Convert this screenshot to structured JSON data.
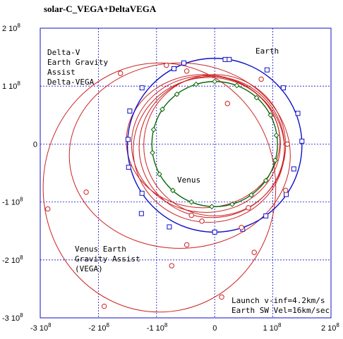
{
  "chart_data": {
    "type": "line",
    "title": "solar-C_VEGA+DeltaVEGA",
    "xlabel": "",
    "ylabel": "",
    "xlim": [
      -300000000,
      200000000
    ],
    "ylim": [
      -300000000,
      200000000
    ],
    "grid": true,
    "x_ticks": [
      {
        "value": -300000000,
        "label": "-3 10",
        "exp": "8"
      },
      {
        "value": -200000000,
        "label": "-2 10",
        "exp": "8"
      },
      {
        "value": -100000000,
        "label": "-1 10",
        "exp": "8"
      },
      {
        "value": 0,
        "label": "0",
        "exp": ""
      },
      {
        "value": 100000000,
        "label": "1 10",
        "exp": "8"
      },
      {
        "value": 200000000,
        "label": "2 10",
        "exp": "8"
      }
    ],
    "y_ticks": [
      {
        "value": 200000000,
        "label": "2 10",
        "exp": "8"
      },
      {
        "value": 100000000,
        "label": "1 10",
        "exp": "8"
      },
      {
        "value": 0,
        "label": "0",
        "exp": ""
      },
      {
        "value": -100000000,
        "label": "-1 10",
        "exp": "8"
      },
      {
        "value": -200000000,
        "label": "-2 10",
        "exp": "8"
      },
      {
        "value": -300000000,
        "label": "-3 10",
        "exp": "8"
      }
    ],
    "annotations": {
      "delta_v": [
        "Delta-V",
        "Earth Gravity",
        "Assist",
        "Delta-VEGA"
      ],
      "venus_earth": [
        "Venus Earth",
        "Gravity Assist",
        "(VEGA)"
      ],
      "launch": [
        "Launch v-inf=4.2km/s",
        "Earth SW Vel=16km/sec"
      ],
      "earth": "Earth",
      "venus": "Venus"
    },
    "orbits": {
      "earth": {
        "name": "Earth",
        "color": "#1010c8",
        "cx": 0,
        "cy": -2000000,
        "rx": 150000000,
        "ry": 150000000,
        "markers": [
          [
            18000000,
            146000000
          ],
          [
            -53000000,
            140000000
          ],
          [
            -70000000,
            130000000
          ],
          [
            -125000000,
            97000000
          ],
          [
            -146000000,
            57000000
          ],
          [
            -149000000,
            8000000
          ],
          [
            -148000000,
            -40000000
          ],
          [
            -125000000,
            -85000000
          ],
          [
            -126000000,
            -120000000
          ],
          [
            -78000000,
            -143000000
          ],
          [
            0,
            -152000000
          ],
          [
            48000000,
            -147000000
          ],
          [
            88000000,
            -124000000
          ],
          [
            123000000,
            -87000000
          ],
          [
            136000000,
            -43000000
          ],
          [
            150000000,
            5000000
          ],
          [
            143000000,
            53000000
          ],
          [
            118000000,
            97000000
          ],
          [
            90000000,
            128000000
          ],
          [
            25000000,
            146000000
          ]
        ]
      },
      "venus": {
        "name": "Venus",
        "color": "#0a6a0a",
        "cx": 0,
        "cy": 0,
        "rx": 108000000,
        "ry": 108000000,
        "markers": [
          [
            0,
            108000000
          ],
          [
            38000000,
            101000000
          ],
          [
            72000000,
            80000000
          ],
          [
            96000000,
            50000000
          ],
          [
            106000000,
            15000000
          ],
          [
            104000000,
            -28000000
          ],
          [
            88000000,
            -63000000
          ],
          [
            63000000,
            -88000000
          ],
          [
            30000000,
            -104000000
          ],
          [
            -5000000,
            -108000000
          ],
          [
            -40000000,
            -100000000
          ],
          [
            -72000000,
            -80000000
          ],
          [
            -95000000,
            -52000000
          ],
          [
            -107000000,
            -15000000
          ],
          [
            -105000000,
            25000000
          ],
          [
            -90000000,
            60000000
          ],
          [
            -65000000,
            86000000
          ],
          [
            -32000000,
            103000000
          ]
        ]
      },
      "spacecraft_color": "#cc2222",
      "spacecraft_ellipses": [
        {
          "cx": 0,
          "cy": -2000000,
          "rx": 122000000,
          "ry": 122000000
        },
        {
          "cx": -5000000,
          "cy": -5000000,
          "rx": 125000000,
          "ry": 122000000
        },
        {
          "cx": -10000000,
          "cy": -10000000,
          "rx": 130000000,
          "ry": 125000000
        },
        {
          "cx": -15000000,
          "cy": 0,
          "rx": 128000000,
          "ry": 118000000
        },
        {
          "cx": -20000000,
          "cy": 5000000,
          "rx": 132000000,
          "ry": 115000000
        },
        {
          "cx": -60000000,
          "cy": -20000000,
          "rx": 190000000,
          "ry": 160000000
        },
        {
          "cx": -95000000,
          "cy": -75000000,
          "rx": 200000000,
          "ry": 215000000
        }
      ],
      "spacecraft_markers": [
        [
          -162000000,
          122000000
        ],
        [
          -83000000,
          136000000
        ],
        [
          -48000000,
          126000000
        ],
        [
          22000000,
          70000000
        ],
        [
          -221000000,
          -83000000
        ],
        [
          -287000000,
          -112000000
        ],
        [
          -190000000,
          -280000000
        ],
        [
          12000000,
          -264000000
        ],
        [
          -74000000,
          -210000000
        ],
        [
          -48000000,
          -174000000
        ],
        [
          -40000000,
          -123000000
        ],
        [
          -22000000,
          -133000000
        ],
        [
          46000000,
          -144000000
        ],
        [
          58000000,
          -110000000
        ],
        [
          68000000,
          -187000000
        ],
        [
          122000000,
          -80000000
        ],
        [
          125000000,
          0
        ],
        [
          80000000,
          112000000
        ]
      ]
    }
  }
}
